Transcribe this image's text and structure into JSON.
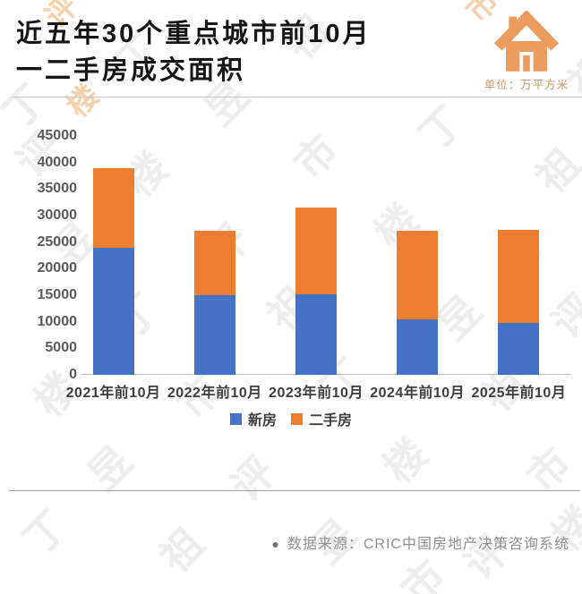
{
  "header": {
    "title_line1": "近五年30个重点城市前10月",
    "title_line2": "一二手房成交面积",
    "unit_label": "单位：万平方米",
    "house_icon": "house-icon",
    "house_icon_color": "#EC9C5C"
  },
  "chart_data": {
    "type": "bar",
    "stacked": true,
    "title": "近五年30个重点城市前10月一二手房成交面积",
    "unit": "万平方米",
    "categories": [
      "2021年前10月",
      "2022年前10月",
      "2023年前10月",
      "2024年前10月",
      "2025年前10月"
    ],
    "series": [
      {
        "name": "新房",
        "color": "#4472C4",
        "values": [
          24000,
          15000,
          15100,
          10400,
          9700
        ]
      },
      {
        "name": "二手房",
        "color": "#ED7D31",
        "values": [
          15000,
          12200,
          16500,
          16800,
          17600
        ]
      }
    ],
    "totals": [
      39000,
      27200,
      31600,
      27200,
      27300
    ],
    "ylim": [
      0,
      45000
    ],
    "yticks": [
      0,
      5000,
      10000,
      15000,
      20000,
      25000,
      30000,
      35000,
      40000,
      45000
    ],
    "grid": false,
    "legend_position": "bottom",
    "axis_text_color": "#5a5a5a"
  },
  "footer": {
    "bullet": "●",
    "source_text": "数据来源：CRIC中国房地产决策咨询系统"
  },
  "watermark": {
    "chars": [
      "丁",
      "祖",
      "昱",
      "评",
      "楼",
      "市"
    ]
  }
}
